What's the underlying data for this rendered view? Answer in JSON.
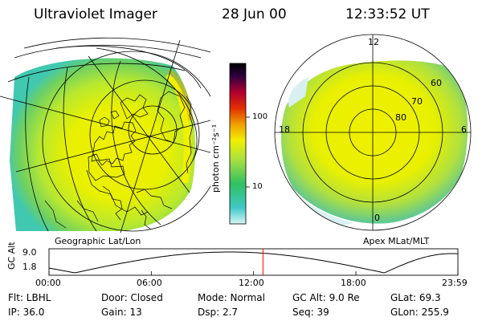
{
  "header": {
    "title": "Ultraviolet Imager",
    "date": "28 Jun 00",
    "time": "12:33:52 UT"
  },
  "colorbar": {
    "unit_label": "photon cm⁻²s⁻¹",
    "ticks": [
      "100",
      "10"
    ],
    "scale": "log",
    "colors": [
      "#d8f4f4",
      "#40c8c8",
      "#30c060",
      "#a8e040",
      "#f0f000",
      "#f0a000",
      "#e03000",
      "#b00030",
      "#300040",
      "#000000"
    ]
  },
  "left_map": {
    "caption": "Geographic Lat/Lon"
  },
  "right_map": {
    "caption": "Apex MLat/MLT",
    "mlt_labels": {
      "top": "12",
      "left": "18",
      "right": "6",
      "bottom": "0"
    },
    "lat_labels": [
      "60",
      "70",
      "80"
    ]
  },
  "altitude_plot": {
    "ylabel": "GC Alt",
    "y_ticks": [
      "9.0",
      "1.8"
    ],
    "x_ticks": [
      "00:00",
      "06:00",
      "12:00",
      "18:00",
      "23:59"
    ],
    "marker_time": "12:33",
    "marker_color": "#ff0000"
  },
  "info": {
    "flt": "Flt: LBHL",
    "ip": "IP: 36.0",
    "door": "Door: Closed",
    "gain": "Gain: 13",
    "mode": "Mode: Normal",
    "dsp": "Dsp:     2.7",
    "gc_alt": "GC Alt: 9.0 Re",
    "seq": "Seq: 39",
    "glat": "GLat:  69.3",
    "glon": "GLon: 255.9"
  }
}
